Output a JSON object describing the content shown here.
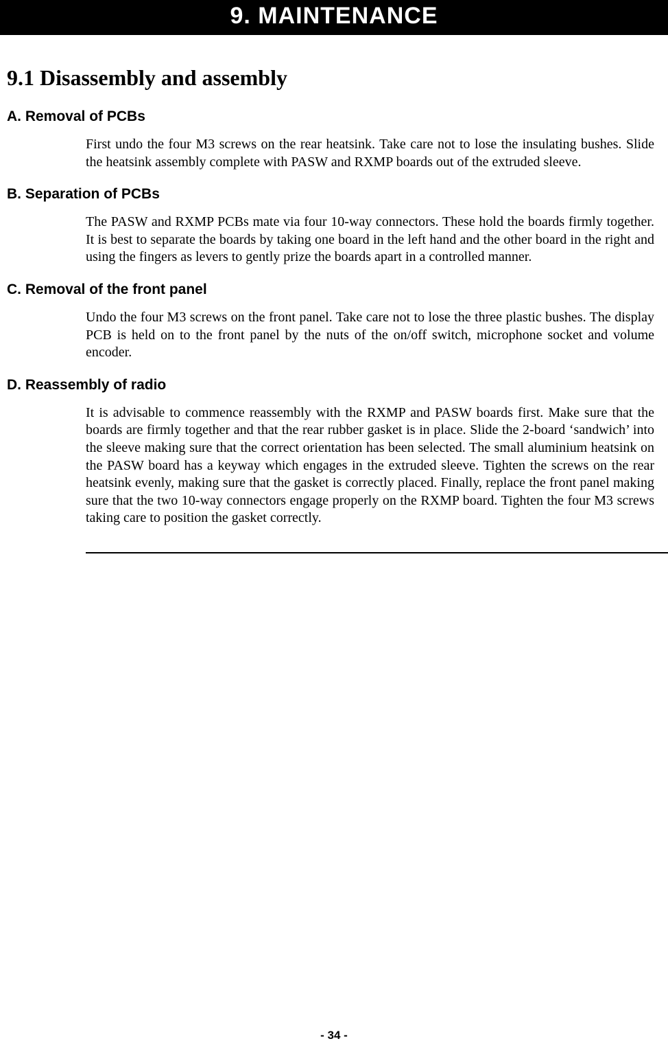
{
  "chapter": {
    "banner": "9.  MAINTENANCE"
  },
  "section": {
    "title": "9.1  Disassembly and assembly"
  },
  "subsections": {
    "a": {
      "heading": "A.  Removal of PCBs",
      "body": "First undo the four M3 screws on the rear heatsink.  Take care not to lose the insulating bushes.  Slide the heatsink assembly complete with PASW and RXMP boards out of the extruded sleeve."
    },
    "b": {
      "heading": "B.  Separation of PCBs",
      "body": "The PASW and RXMP PCBs mate via four 10-way connectors.  These hold the boards firmly together.  It is best to separate the boards by taking one board in the left hand and the other board in the right and using the fingers as levers to gently prize the boards apart in a controlled manner."
    },
    "c": {
      "heading": "C.  Removal of the front panel",
      "body": "Undo the four M3 screws on the front panel.  Take care not to lose the three plastic bushes.  The display PCB is held on to the front panel by the nuts of the on/off switch, microphone socket and volume encoder."
    },
    "d": {
      "heading": "D.  Reassembly of radio",
      "body": "It is advisable to commence reassembly with the RXMP and PASW boards first. Make sure that the boards are firmly together and that the rear rubber gasket is in place.  Slide the 2-board ‘sandwich’ into the sleeve making sure that the correct orientation has been selected.  The small aluminium heatsink on the PASW board has a keyway which engages in the extruded sleeve.  Tighten the screws on the rear heatsink evenly, making sure that the gasket is correctly placed.  Finally, replace the front panel making sure that the two 10-way connectors engage properly on the RXMP board.  Tighten the four M3 screws taking care to position the gasket correctly."
    }
  },
  "pageNumber": "- 34 -",
  "colors": {
    "bannerBg": "#000000",
    "bannerText": "#ffffff",
    "pageBg": "#ffffff",
    "text": "#000000"
  },
  "typography": {
    "bannerFont": "Verdana",
    "bannerSize": 34,
    "sectionTitleSize": 32,
    "subHeadingFont": "Arial",
    "subHeadingSize": 21,
    "bodyFont": "Times New Roman",
    "bodySize": 20
  }
}
